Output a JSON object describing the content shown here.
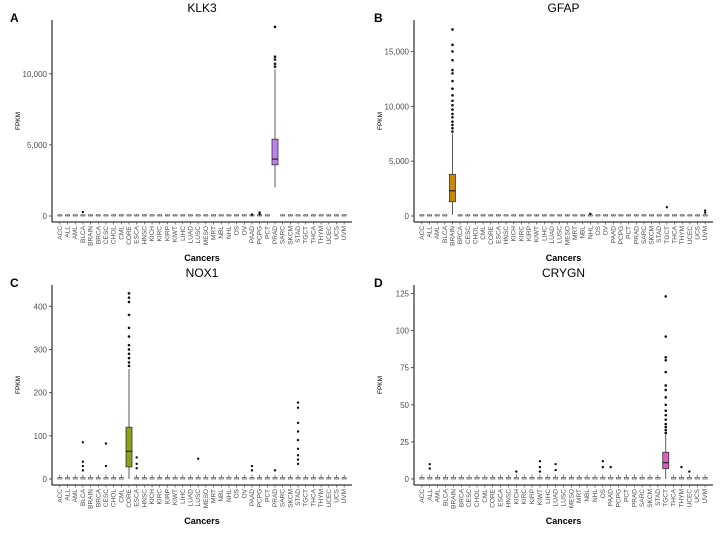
{
  "chart_data": [
    {
      "type": "box",
      "panel_letter": "A",
      "title": "KLK3",
      "xlabel": "Cancers",
      "ylabel": "FPKM",
      "ylim": [
        0,
        13500
      ],
      "yticks": [
        0,
        5000,
        10000
      ],
      "ytick_labels": [
        "0",
        "5,000",
        "10,000"
      ],
      "highlight": {
        "category": "PRAD",
        "color": "#c07fef",
        "q1": 3600,
        "median": 4000,
        "q3": 5400,
        "whisker_low": 2000,
        "whisker_high": 10300,
        "outliers": [
          10500,
          10700,
          11000,
          11200,
          13300
        ]
      },
      "baseline": {
        "q3": 40,
        "whisker_high": 120,
        "outliers": {
          "BLCA": [
            280
          ],
          "PCPG": [
            250,
            120
          ],
          "PAAD": [
            100
          ]
        }
      },
      "categories": [
        "ACC",
        "ALL",
        "AML",
        "BLCA",
        "BRAIN",
        "BRCA",
        "CESC",
        "CHOL",
        "CML",
        "CORE",
        "ESCA",
        "HNSC",
        "KICH",
        "KIRC",
        "KIRP",
        "KIWT",
        "LIHC",
        "LUAD",
        "LUSC",
        "MESO",
        "MRT",
        "NBL",
        "NHL",
        "OS",
        "OV",
        "PAAD",
        "PCPG",
        "PCT",
        "PRAD",
        "SARC",
        "SKCM",
        "STAD",
        "TGCT",
        "THCA",
        "THYM",
        "UCEC",
        "UCS",
        "UVM"
      ]
    },
    {
      "type": "box",
      "panel_letter": "B",
      "title": "GFAP",
      "xlabel": "Cancers",
      "ylabel": "FPKM",
      "ylim": [
        0,
        17500
      ],
      "yticks": [
        0,
        5000,
        10000,
        15000
      ],
      "ytick_labels": [
        "0",
        "5,000",
        "10,000",
        "15,000"
      ],
      "highlight": {
        "category": "BRAIN",
        "color": "#c8880e",
        "q1": 1300,
        "median": 2300,
        "q3": 3800,
        "whisker_low": 100,
        "whisker_high": 7500,
        "outliers": [
          7700,
          8000,
          8300,
          8600,
          9000,
          9300,
          9700,
          10100,
          10500,
          11000,
          11600,
          12300,
          13000,
          13300,
          14200,
          15000,
          15600,
          17000
        ]
      },
      "baseline": {
        "q3": 50,
        "whisker_high": 150,
        "outliers": {
          "TGCT": [
            800
          ],
          "UVM": [
            500,
            300
          ],
          "NHL": [
            200
          ]
        }
      },
      "categories": [
        "ACC",
        "ALL",
        "AML",
        "BLCA",
        "BRAIN",
        "BRCA",
        "CESC",
        "CHOL",
        "CML",
        "CORE",
        "ESCA",
        "HNSC",
        "KICH",
        "KIRC",
        "KIRP",
        "KIWT",
        "LIHC",
        "LUAD",
        "LUSC",
        "MESO",
        "MRT",
        "NBL",
        "NHL",
        "OS",
        "OV",
        "PAAD",
        "PCPG",
        "PCT",
        "PRAD",
        "SARC",
        "SKCM",
        "STAD",
        "TGCT",
        "THCA",
        "THYM",
        "UCEC",
        "UCS",
        "UVM"
      ]
    },
    {
      "type": "box",
      "panel_letter": "C",
      "title": "NOX1",
      "xlabel": "Cancers",
      "ylabel": "FPKM",
      "ylim": [
        0,
        440
      ],
      "yticks": [
        0,
        100,
        200,
        300,
        400
      ],
      "ytick_labels": [
        "0",
        "100",
        "200",
        "300",
        "400"
      ],
      "highlight": {
        "category": "CORE",
        "color": "#8aa31c",
        "q1": 28,
        "median": 64,
        "q3": 120,
        "whisker_low": 0,
        "whisker_high": 255,
        "outliers": [
          262,
          270,
          280,
          290,
          300,
          310,
          330,
          350,
          380,
          410,
          420,
          430
        ]
      },
      "baseline": {
        "q3": 3,
        "whisker_high": 10,
        "outliers": {
          "BLCA": [
            85,
            40,
            30,
            20
          ],
          "CESC": [
            82,
            30
          ],
          "ESCA": [
            50,
            35,
            25
          ],
          "LUSC": [
            47
          ],
          "STAD": [
            177,
            165,
            130,
            110,
            90,
            70,
            55,
            45,
            35
          ],
          "PAAD": [
            30,
            20
          ],
          "PRAD": [
            20
          ]
        }
      },
      "categories": [
        "ACC",
        "ALL",
        "AML",
        "BLCA",
        "BRAIN",
        "BRCA",
        "CESC",
        "CHOL",
        "CML",
        "CORE",
        "ESCA",
        "HNSC",
        "KICH",
        "KIRC",
        "KIRP",
        "KIWT",
        "LIHC",
        "LUAD",
        "LUSC",
        "MESO",
        "MRT",
        "NBL",
        "NHL",
        "OS",
        "OV",
        "PAAD",
        "PCPG",
        "PCT",
        "PRAD",
        "SARC",
        "SKCM",
        "STAD",
        "TGCT",
        "THCA",
        "THYM",
        "UCEC",
        "UCS",
        "UVM"
      ]
    },
    {
      "type": "box",
      "panel_letter": "D",
      "title": "CRYGN",
      "xlabel": "Cancers",
      "ylabel": "FPKM",
      "ylim": [
        0,
        128
      ],
      "yticks": [
        0,
        25,
        50,
        75,
        100,
        125
      ],
      "ytick_labels": [
        "0",
        "25",
        "50",
        "75",
        "100",
        "125"
      ],
      "highlight": {
        "category": "TGCT",
        "color": "#e05dbf",
        "q1": 7,
        "median": 11,
        "q3": 18,
        "whisker_low": 0,
        "whisker_high": 30,
        "outliers": [
          31,
          33,
          35,
          37,
          40,
          43,
          46,
          50,
          55,
          60,
          63,
          72,
          80,
          82,
          96,
          123
        ]
      },
      "baseline": {
        "q3": 1,
        "whisker_high": 3,
        "outliers": {
          "ALL": [
            10,
            7
          ],
          "KIWT": [
            12,
            8,
            5
          ],
          "LUAD": [
            10,
            6
          ],
          "OS": [
            12,
            8
          ],
          "PAAD": [
            8
          ],
          "KICH": [
            5
          ],
          "THYM": [
            8
          ],
          "UCEC": [
            5
          ]
        }
      },
      "categories": [
        "ACC",
        "ALL",
        "AML",
        "BLCA",
        "BRAIN",
        "BRCA",
        "CESC",
        "CHOL",
        "CML",
        "CORE",
        "ESCA",
        "HNSC",
        "KICH",
        "KIRC",
        "KIRP",
        "KIWT",
        "LIHC",
        "LUAD",
        "LUSC",
        "MESO",
        "MRT",
        "NBL",
        "NHL",
        "OS",
        "PAAD",
        "PCPG",
        "PCT",
        "PRAD",
        "SARC",
        "SKCM",
        "STAD",
        "TGCT",
        "THCA",
        "THYM",
        "UCEC",
        "UCS",
        "UVM"
      ]
    }
  ]
}
